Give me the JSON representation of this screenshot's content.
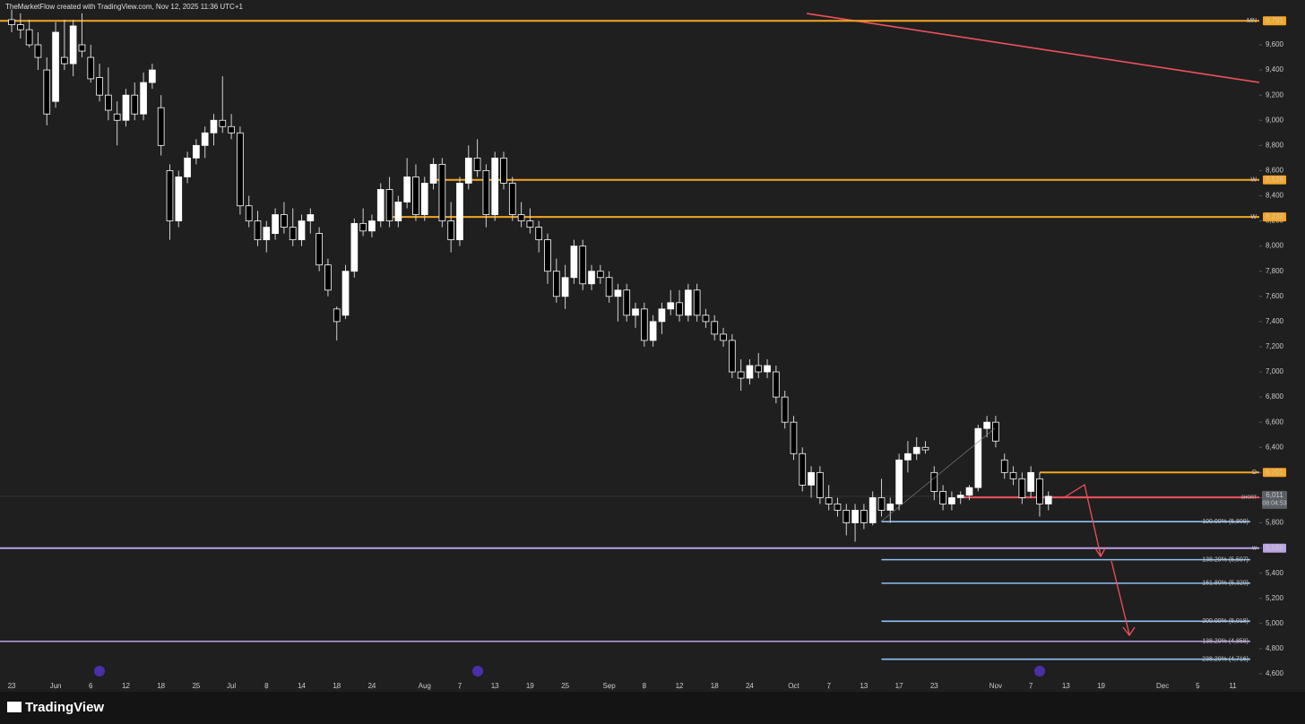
{
  "header": "TheMarketFlow created with TradingView.com, Nov 12, 2025 11:36 UTC+1",
  "footer": "TradingView",
  "chart_data": {
    "type": "candlestick",
    "up_color": "#ffffff",
    "down_color": "#000000",
    "wick_color": "#d0d0d0",
    "xlim": [
      -1.33,
      142
    ],
    "ylim": [
      4500,
      9885
    ],
    "xticks": [
      {
        "value": 0,
        "label": "23"
      },
      {
        "value": 5,
        "label": "Jun"
      },
      {
        "value": 9,
        "label": "6"
      },
      {
        "value": 13,
        "label": "12"
      },
      {
        "value": 17,
        "label": "18"
      },
      {
        "value": 21,
        "label": "25"
      },
      {
        "value": 25,
        "label": "Jul"
      },
      {
        "value": 29,
        "label": "8"
      },
      {
        "value": 33,
        "label": "14"
      },
      {
        "value": 37,
        "label": "18"
      },
      {
        "value": 41,
        "label": "24"
      },
      {
        "value": 47,
        "label": "Aug"
      },
      {
        "value": 51,
        "label": "7"
      },
      {
        "value": 55,
        "label": "13"
      },
      {
        "value": 59,
        "label": "19"
      },
      {
        "value": 63,
        "label": "25"
      },
      {
        "value": 68,
        "label": "Sep"
      },
      {
        "value": 72,
        "label": "8"
      },
      {
        "value": 76,
        "label": "12"
      },
      {
        "value": 80,
        "label": "18"
      },
      {
        "value": 84,
        "label": "24"
      },
      {
        "value": 89,
        "label": "Oct"
      },
      {
        "value": 93,
        "label": "7"
      },
      {
        "value": 97,
        "label": "13"
      },
      {
        "value": 101,
        "label": "17"
      },
      {
        "value": 105,
        "label": "23"
      },
      {
        "value": 112,
        "label": "Nov"
      },
      {
        "value": 116,
        "label": "7"
      },
      {
        "value": 120,
        "label": "13"
      },
      {
        "value": 124,
        "label": "19"
      },
      {
        "value": 131,
        "label": "Dec"
      },
      {
        "value": 135,
        "label": "5"
      },
      {
        "value": 139,
        "label": "11"
      }
    ],
    "yticks": [
      {
        "value": 4600,
        "label": "4,600"
      },
      {
        "value": 4800,
        "label": "4,800"
      },
      {
        "value": 5000,
        "label": "5,000"
      },
      {
        "value": 5200,
        "label": "5,200"
      },
      {
        "value": 5400,
        "label": "5,400"
      },
      {
        "value": 5600,
        "label": "5,600"
      },
      {
        "value": 5800,
        "label": "5,800"
      },
      {
        "value": 6000,
        "label": "6,000"
      },
      {
        "value": 6200,
        "label": "6,200"
      },
      {
        "value": 6400,
        "label": "6,400"
      },
      {
        "value": 6600,
        "label": "6,600"
      },
      {
        "value": 6800,
        "label": "6,800"
      },
      {
        "value": 7000,
        "label": "7,000"
      },
      {
        "value": 7200,
        "label": "7,200"
      },
      {
        "value": 7400,
        "label": "7,400"
      },
      {
        "value": 7600,
        "label": "7,600"
      },
      {
        "value": 7800,
        "label": "7,800"
      },
      {
        "value": 8000,
        "label": "8,000"
      },
      {
        "value": 8200,
        "label": "8,200"
      },
      {
        "value": 8400,
        "label": "8,400"
      },
      {
        "value": 8600,
        "label": "8,600"
      },
      {
        "value": 8800,
        "label": "8,800"
      },
      {
        "value": 9000,
        "label": "9,000"
      },
      {
        "value": 9200,
        "label": "9,200"
      },
      {
        "value": 9400,
        "label": "9,400"
      },
      {
        "value": 9600,
        "label": "9,600"
      }
    ],
    "ohlc": [
      [
        9800,
        9880,
        9700,
        9760
      ],
      [
        9760,
        9850,
        9650,
        9720
      ],
      [
        9720,
        9800,
        9580,
        9600
      ],
      [
        9600,
        9700,
        9400,
        9500
      ],
      [
        9400,
        9500,
        8960,
        9050
      ],
      [
        9150,
        9780,
        9100,
        9700
      ],
      [
        9500,
        9800,
        9400,
        9450
      ],
      [
        9450,
        9800,
        9350,
        9750
      ],
      [
        9600,
        9850,
        9500,
        9550
      ],
      [
        9500,
        9600,
        9300,
        9330
      ],
      [
        9340,
        9450,
        9150,
        9200
      ],
      [
        9200,
        9420,
        9000,
        9080
      ],
      [
        9050,
        9150,
        8800,
        9000
      ],
      [
        9000,
        9250,
        8950,
        9200
      ],
      [
        9200,
        9300,
        9000,
        9050
      ],
      [
        9050,
        9380,
        9000,
        9300
      ],
      [
        9300,
        9450,
        9250,
        9400
      ],
      [
        9100,
        9200,
        8720,
        8800
      ],
      [
        8600,
        8650,
        8050,
        8200
      ],
      [
        8200,
        8600,
        8150,
        8550
      ],
      [
        8550,
        8750,
        8500,
        8700
      ],
      [
        8700,
        8850,
        8650,
        8800
      ],
      [
        8800,
        8950,
        8700,
        8900
      ],
      [
        8900,
        9050,
        8800,
        9000
      ],
      [
        9000,
        9350,
        8900,
        8950
      ],
      [
        8950,
        9050,
        8850,
        8900
      ],
      [
        8900,
        8950,
        8250,
        8320
      ],
      [
        8320,
        8400,
        8150,
        8200
      ],
      [
        8200,
        8280,
        8000,
        8050
      ],
      [
        8050,
        8200,
        7950,
        8150
      ],
      [
        8100,
        8300,
        8050,
        8250
      ],
      [
        8250,
        8350,
        8100,
        8150
      ],
      [
        8150,
        8300,
        8000,
        8050
      ],
      [
        8050,
        8250,
        8000,
        8200
      ],
      [
        8200,
        8300,
        8100,
        8250
      ],
      [
        8100,
        8150,
        7800,
        7850
      ],
      [
        7850,
        7900,
        7600,
        7650
      ],
      [
        7500,
        7520,
        7250,
        7400
      ],
      [
        7450,
        7850,
        7420,
        7800
      ],
      [
        7800,
        8220,
        7750,
        8180
      ],
      [
        8180,
        8300,
        8080,
        8120
      ],
      [
        8120,
        8250,
        8070,
        8200
      ],
      [
        8200,
        8500,
        8150,
        8450
      ],
      [
        8450,
        8550,
        8150,
        8200
      ],
      [
        8200,
        8400,
        8150,
        8350
      ],
      [
        8350,
        8700,
        8300,
        8550
      ],
      [
        8550,
        8650,
        8200,
        8250
      ],
      [
        8250,
        8550,
        8200,
        8500
      ],
      [
        8500,
        8700,
        8450,
        8650
      ],
      [
        8650,
        8700,
        8150,
        8200
      ],
      [
        8200,
        8350,
        7950,
        8050
      ],
      [
        8050,
        8550,
        8000,
        8500
      ],
      [
        8500,
        8800,
        8450,
        8700
      ],
      [
        8700,
        8850,
        8550,
        8600
      ],
      [
        8600,
        8650,
        8150,
        8250
      ],
      [
        8250,
        8750,
        8200,
        8700
      ],
      [
        8700,
        8750,
        8450,
        8500
      ],
      [
        8500,
        8550,
        8200,
        8250
      ],
      [
        8250,
        8350,
        8150,
        8200
      ],
      [
        8200,
        8300,
        8100,
        8150
      ],
      [
        8150,
        8200,
        7950,
        8050
      ],
      [
        8050,
        8100,
        7700,
        7800
      ],
      [
        7800,
        7900,
        7550,
        7600
      ],
      [
        7600,
        7850,
        7500,
        7750
      ],
      [
        7750,
        8050,
        7700,
        8000
      ],
      [
        8000,
        8050,
        7650,
        7700
      ],
      [
        7700,
        7850,
        7650,
        7800
      ],
      [
        7800,
        7850,
        7700,
        7750
      ],
      [
        7750,
        7800,
        7550,
        7600
      ],
      [
        7600,
        7700,
        7400,
        7650
      ],
      [
        7650,
        7700,
        7400,
        7450
      ],
      [
        7450,
        7550,
        7350,
        7500
      ],
      [
        7500,
        7550,
        7200,
        7250
      ],
      [
        7250,
        7450,
        7200,
        7400
      ],
      [
        7400,
        7550,
        7300,
        7500
      ],
      [
        7500,
        7650,
        7450,
        7550
      ],
      [
        7550,
        7650,
        7400,
        7450
      ],
      [
        7450,
        7700,
        7400,
        7650
      ],
      [
        7650,
        7700,
        7400,
        7450
      ],
      [
        7450,
        7500,
        7350,
        7400
      ],
      [
        7400,
        7450,
        7250,
        7300
      ],
      [
        7300,
        7350,
        7200,
        7250
      ],
      [
        7250,
        7300,
        6950,
        7000
      ],
      [
        7000,
        7100,
        6850,
        6950
      ],
      [
        6950,
        7100,
        6900,
        7050
      ],
      [
        7050,
        7150,
        6950,
        7000
      ],
      [
        7000,
        7100,
        6950,
        7050
      ],
      [
        7000,
        7050,
        6750,
        6800
      ],
      [
        6800,
        6850,
        6550,
        6600
      ],
      [
        6600,
        6650,
        6300,
        6350
      ],
      [
        6350,
        6400,
        6050,
        6100
      ],
      [
        6100,
        6250,
        6000,
        6200
      ],
      [
        6200,
        6250,
        5950,
        6000
      ],
      [
        6000,
        6100,
        5900,
        5950
      ],
      [
        5950,
        6000,
        5850,
        5900
      ],
      [
        5900,
        5950,
        5700,
        5800
      ],
      [
        5800,
        5950,
        5650,
        5900
      ],
      [
        5900,
        5950,
        5750,
        5800
      ],
      [
        5800,
        6050,
        5780,
        6000
      ],
      [
        6000,
        6150,
        5850,
        5900
      ],
      [
        5900,
        6000,
        5800,
        5950
      ],
      [
        5950,
        6350,
        5900,
        6300
      ],
      [
        6300,
        6450,
        6200,
        6350
      ],
      [
        6350,
        6480,
        6300,
        6400
      ],
      [
        6400,
        6450,
        6350,
        6380
      ],
      [
        6200,
        6250,
        5980,
        6050
      ],
      [
        6050,
        6100,
        5900,
        5950
      ],
      [
        5950,
        6050,
        5900,
        6000
      ],
      [
        6000,
        6050,
        5950,
        6020
      ],
      [
        6020,
        6100,
        5980,
        6080
      ],
      [
        6080,
        6580,
        6050,
        6550
      ],
      [
        6550,
        6650,
        6480,
        6600
      ],
      [
        6600,
        6650,
        6400,
        6450
      ],
      [
        6300,
        6350,
        6150,
        6200
      ],
      [
        6200,
        6250,
        6100,
        6150
      ],
      [
        6150,
        6200,
        5950,
        6000
      ],
      [
        6050,
        6250,
        6000,
        6200
      ],
      [
        6150,
        6200,
        5850,
        5950
      ],
      [
        5950,
        6050,
        5900,
        6011
      ]
    ],
    "levels": [
      {
        "label": "MN",
        "value": 9791,
        "value_label": "9,791",
        "color": "#f5a623"
      },
      {
        "label": "W",
        "value": 8526,
        "value_label": "8,526",
        "color": "#f5a623",
        "from": 48
      },
      {
        "label": "W",
        "value": 8232,
        "value_label": "8,232",
        "color": "#f5a623",
        "from": 43
      },
      {
        "label": "D",
        "value": 6201,
        "value_label": "6,201",
        "color": "#f5a623",
        "from": 117
      },
      {
        "label": "SHORT",
        "value": 6002,
        "value_label": "6,002",
        "color": "#f0505a",
        "from": 108
      },
      {
        "label": "w",
        "value": 5599,
        "value_label": "5,599",
        "color": "#b9a2e6"
      }
    ],
    "fib_levels": [
      {
        "label": "100.00% (5,809)",
        "value": 5809,
        "color": "#8fc1f5",
        "from": 99
      },
      {
        "label": "138.20% (5,507)",
        "value": 5507,
        "color": "#8fc1f5",
        "from": 99
      },
      {
        "label": "161.80% (5,320)",
        "value": 5320,
        "color": "#8fc1f5",
        "from": 99
      },
      {
        "label": "200.00% (5,018)",
        "value": 5018,
        "color": "#8fc1f5",
        "from": 99
      },
      {
        "label": "138.20% (4,858)",
        "value": 4858,
        "color": "#b9a2e6"
      },
      {
        "label": "238.20% (4,716)",
        "value": 4716,
        "color": "#8fc1f5",
        "from": 99
      }
    ],
    "trendline": {
      "points": [
        [
          90.5,
          9849
        ],
        [
          142,
          9301
        ]
      ],
      "color": "#f0505a"
    },
    "current": {
      "value": 6011,
      "label": "6,011",
      "countdown": "08:04:53"
    }
  }
}
